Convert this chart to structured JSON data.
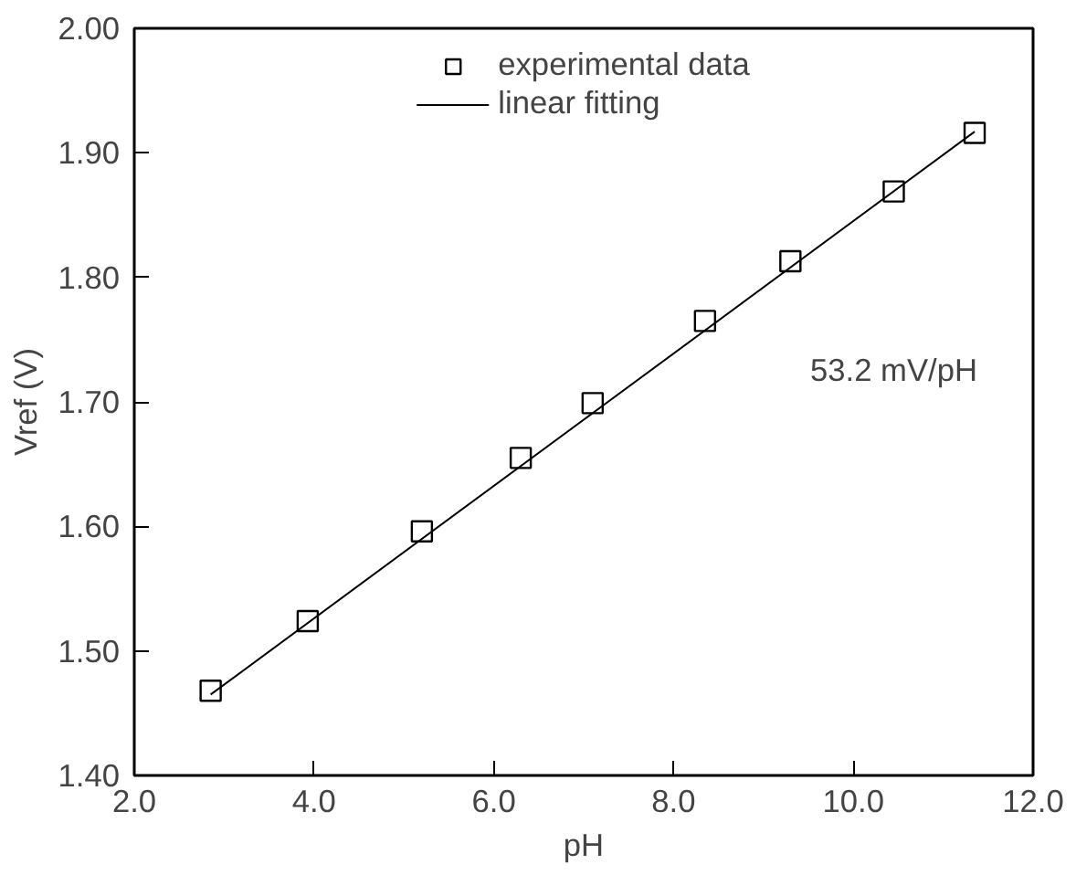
{
  "chart_data": {
    "type": "scatter",
    "xlabel": "pH",
    "ylabel": "Vref (V)",
    "xlim": [
      2.0,
      12.0
    ],
    "ylim": [
      1.4,
      2.0
    ],
    "xticks": [
      {
        "value": 2,
        "label": "2.0"
      },
      {
        "value": 4,
        "label": "4.0"
      },
      {
        "value": 6,
        "label": "6.0"
      },
      {
        "value": 8,
        "label": "8.0"
      },
      {
        "value": 10,
        "label": "10.0"
      },
      {
        "value": 12,
        "label": "12.0"
      }
    ],
    "yticks": [
      {
        "value": 1.4,
        "label": "1.40"
      },
      {
        "value": 1.5,
        "label": "1.50"
      },
      {
        "value": 1.6,
        "label": "1.60"
      },
      {
        "value": 1.7,
        "label": "1.70"
      },
      {
        "value": 1.8,
        "label": "1.80"
      },
      {
        "value": 1.9,
        "label": "1.90"
      },
      {
        "value": 2.0,
        "label": "2.00"
      }
    ],
    "grid": false,
    "legend": "top",
    "series": [
      {
        "name": "experimental data",
        "marker": "square",
        "color": "#000000",
        "x": [
          2.85,
          3.93,
          5.2,
          6.3,
          7.1,
          8.35,
          9.3,
          10.45,
          11.35
        ],
        "values": [
          1.468,
          1.524,
          1.596,
          1.655,
          1.699,
          1.765,
          1.813,
          1.869,
          1.916
        ]
      },
      {
        "name": "linear fitting",
        "type": "line",
        "color": "#000000",
        "line_style": "solid",
        "x": [
          2.85,
          11.35
        ],
        "values": [
          1.465,
          1.917
        ]
      }
    ],
    "annotations": [
      "53.2 mV/pH"
    ]
  }
}
